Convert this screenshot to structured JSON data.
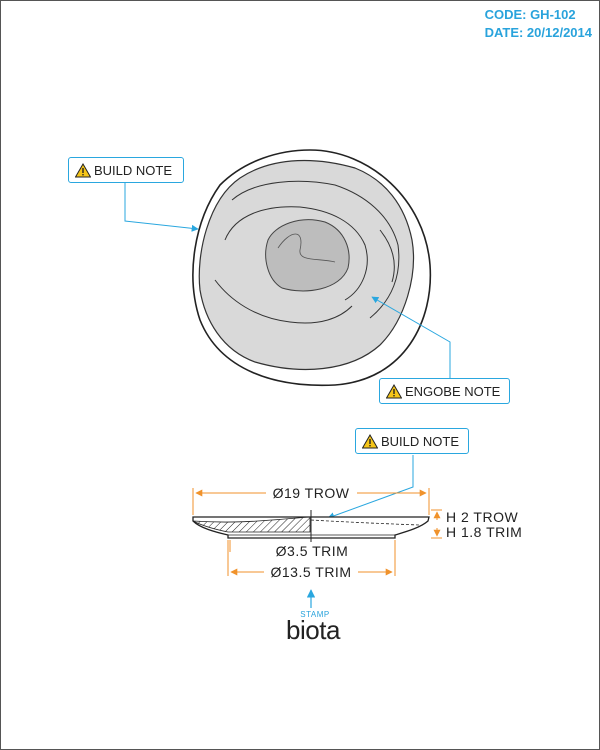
{
  "header": {
    "code": "CODE: GH-102",
    "date": "DATE: 20/12/2014"
  },
  "notes": {
    "build_note_top": "BUILD NOTE",
    "engobe_note": "ENGOBE NOTE",
    "build_note_bottom": "BUILD NOTE"
  },
  "dimensions": {
    "overall_diameter": "Ø19 TROW",
    "height_trow": "H 2 TROW",
    "height_trim": "H 1.8 TRIM",
    "foot_trim": "Ø3.5 TRIM",
    "base_diameter": "Ø13.5 TRIM"
  },
  "stamp": {
    "label": "STAMP",
    "brand": "biota"
  },
  "colors": {
    "accent": "#2aa7df",
    "dimension": "#f0922b",
    "glaze_fill": "#d9d9d9",
    "inner_fill": "#bdbdbd"
  },
  "icons": [
    "warning-icon",
    "arrow-up-icon"
  ]
}
